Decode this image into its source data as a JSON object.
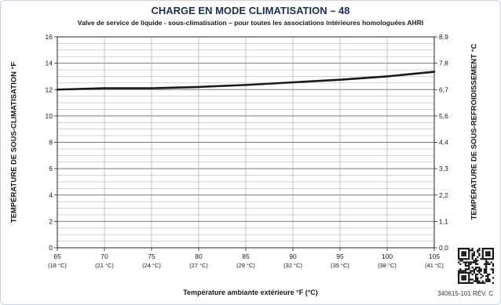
{
  "chart_data": {
    "type": "line",
    "title": "CHARGE EN MODE CLIMATISATION – 48",
    "subtitle": "Valve de service de liquide  - sous-climatisation  – pour toutes les associations intérieures homologuées AHRI",
    "xlabel": "Température ambiante extérieure °F (°C)",
    "ylabel": "TEMPÉRATURE DE SOUS-CLIMATISATION °F",
    "ylabel_right": "TEMPÉRATURE DE SOUS-REFROIDISSEMENT  °C",
    "xlim": [
      65,
      105
    ],
    "ylim": [
      0,
      16
    ],
    "x_ticks": [
      {
        "value": 65,
        "label": "65",
        "sublabel": "(18 °C)"
      },
      {
        "value": 70,
        "label": "70",
        "sublabel": "(21 °C)"
      },
      {
        "value": 75,
        "label": "75",
        "sublabel": "(24 °C)"
      },
      {
        "value": 80,
        "label": "80",
        "sublabel": "(27 °C)"
      },
      {
        "value": 85,
        "label": "85",
        "sublabel": "(29 °C)"
      },
      {
        "value": 90,
        "label": "90",
        "sublabel": "(32 °C)"
      },
      {
        "value": 95,
        "label": "95",
        "sublabel": "(35 °C)"
      },
      {
        "value": 100,
        "label": "100",
        "sublabel": "(38 °C)"
      },
      {
        "value": 105,
        "label": "105",
        "sublabel": "(41 °C)"
      }
    ],
    "y_ticks_left": [
      {
        "value": 0,
        "label": "0"
      },
      {
        "value": 2,
        "label": "2"
      },
      {
        "value": 4,
        "label": "4"
      },
      {
        "value": 6,
        "label": "6"
      },
      {
        "value": 8,
        "label": "8"
      },
      {
        "value": 10,
        "label": "10"
      },
      {
        "value": 12,
        "label": "12"
      },
      {
        "value": 14,
        "label": "14"
      },
      {
        "value": 16,
        "label": "16"
      }
    ],
    "y_ticks_right": [
      {
        "value": 0,
        "label": "0,0"
      },
      {
        "value": 2,
        "label": "1,1"
      },
      {
        "value": 4,
        "label": "2,2"
      },
      {
        "value": 6,
        "label": "3,3"
      },
      {
        "value": 8,
        "label": "4,4"
      },
      {
        "value": 10,
        "label": "5,6"
      },
      {
        "value": 12,
        "label": "6,7"
      },
      {
        "value": 14,
        "label": "7,8"
      },
      {
        "value": 16,
        "label": "8,9"
      }
    ],
    "grid": true,
    "minor_grid_step": 0.5,
    "vertical_grid_step": 5,
    "series": [
      {
        "color": "#1a1a1a",
        "x": [
          65,
          70,
          75,
          80,
          85,
          90,
          95,
          100,
          105
        ],
        "y": [
          12.0,
          12.1,
          12.1,
          12.2,
          12.35,
          12.55,
          12.75,
          13.0,
          13.35
        ]
      }
    ]
  },
  "footer": {
    "reference": "340615-101 RÉV. C"
  }
}
